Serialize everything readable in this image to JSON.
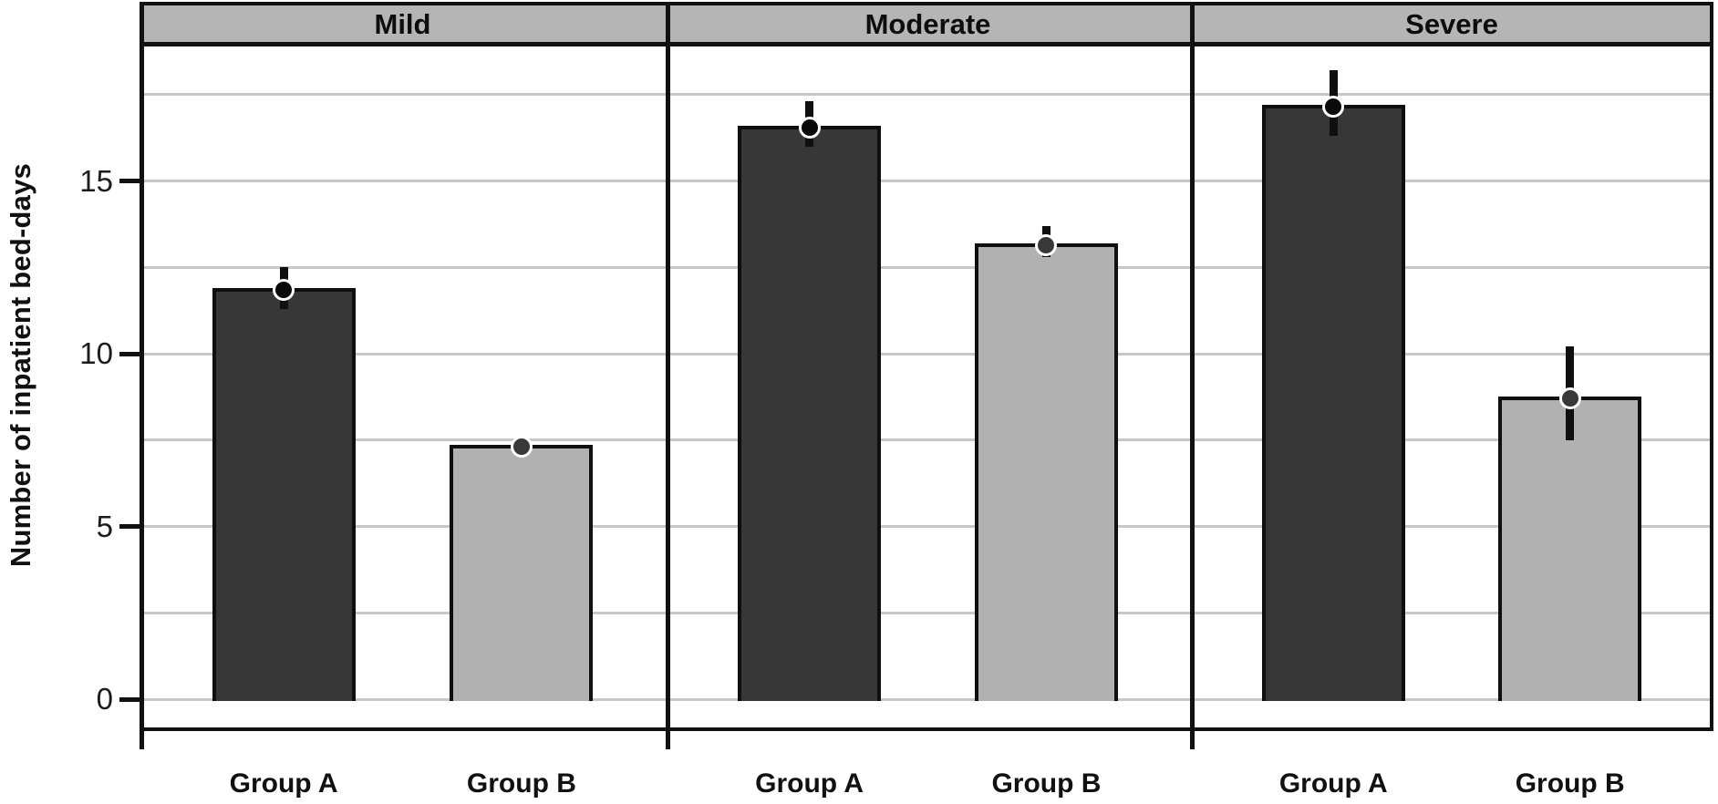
{
  "chart_data": {
    "type": "bar",
    "title": "",
    "xlabel": "",
    "ylabel": "Number of inpatient bed-days",
    "ylim": [
      -0.9,
      19
    ],
    "yticks": [
      0,
      5,
      10,
      15
    ],
    "gridline_step": 2.5,
    "grid": true,
    "legend_position": "none",
    "facets": true,
    "error_bars": true,
    "panels": [
      {
        "label": "Mild",
        "bars": [
          {
            "group": "Group A",
            "series": "Group A",
            "value": 11.9,
            "ci_low": 11.3,
            "ci_high": 12.5
          },
          {
            "group": "Group B",
            "series": "Group B",
            "value": 7.35,
            "ci_low": 7.1,
            "ci_high": 7.6
          }
        ]
      },
      {
        "label": "Moderate",
        "bars": [
          {
            "group": "Group A",
            "series": "Group A",
            "value": 16.6,
            "ci_low": 16.0,
            "ci_high": 17.3
          },
          {
            "group": "Group B",
            "series": "Group B",
            "value": 13.2,
            "ci_low": 12.8,
            "ci_high": 13.7
          }
        ]
      },
      {
        "label": "Severe",
        "bars": [
          {
            "group": "Group A",
            "series": "Group A",
            "value": 17.2,
            "ci_low": 16.3,
            "ci_high": 18.2
          },
          {
            "group": "Group B",
            "series": "Group B",
            "value": 8.75,
            "ci_low": 7.5,
            "ci_high": 10.2
          }
        ]
      }
    ],
    "colors": {
      "group_a_fill": "#373737",
      "group_b_fill": "#b1b1b1",
      "group_a_marker": "#0a0a0a",
      "group_b_marker": "#383838",
      "bar_border": "#0f0f0f",
      "header_fill": "#b5b5b5",
      "gridline": "#c7c7c7",
      "frame": "#111111",
      "text": "#111111",
      "background": "#ffffff"
    }
  }
}
